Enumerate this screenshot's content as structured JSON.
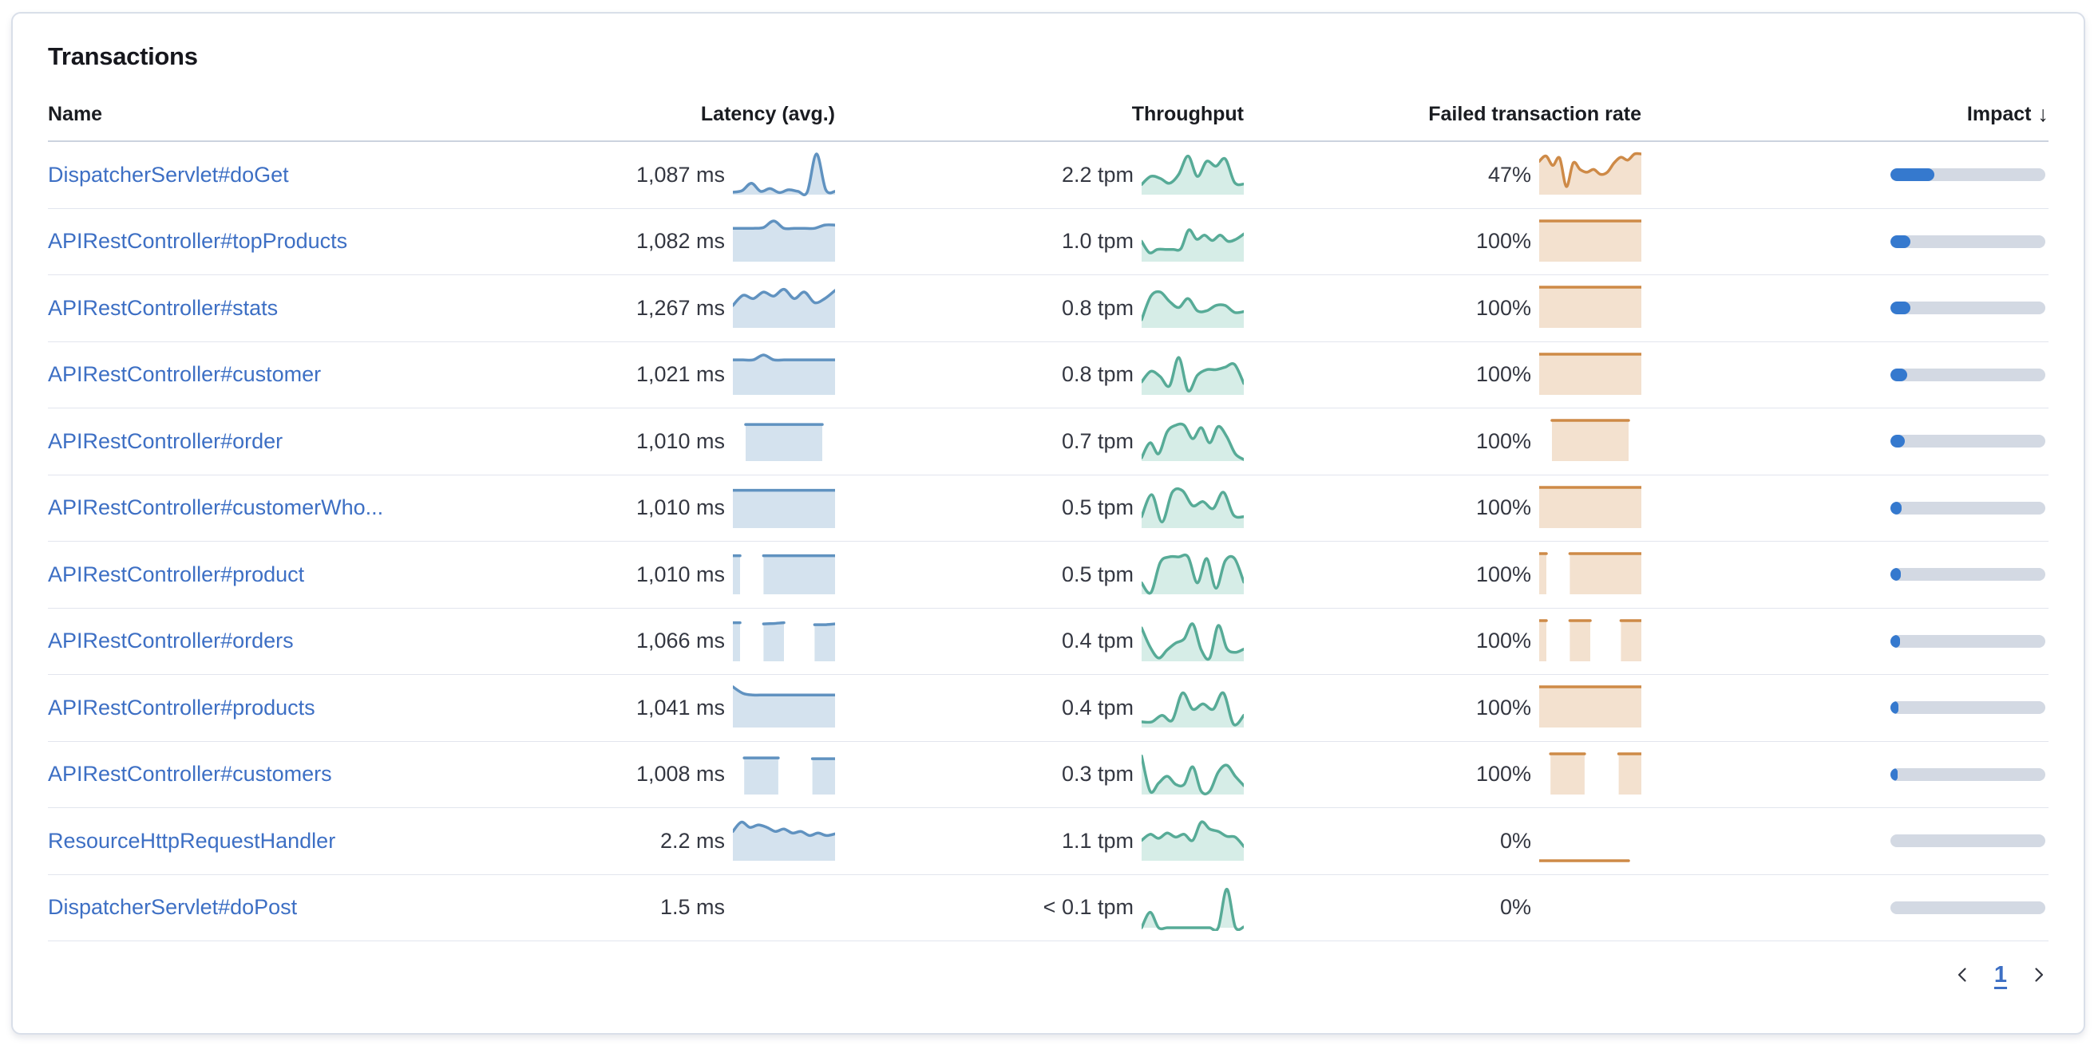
{
  "panel": {
    "title": "Transactions"
  },
  "table": {
    "columns": {
      "name": "Name",
      "latency": "Latency (avg.)",
      "throughput": "Throughput",
      "failed": "Failed transaction rate",
      "impact": "Impact"
    },
    "sort": {
      "column": "impact",
      "direction": "desc",
      "icon": "↓"
    },
    "rows": [
      {
        "name": "DispatcherServlet#doGet",
        "latency": "1,087 ms",
        "latency_spark": [
          0.06,
          0.1,
          0.28,
          0.08,
          0.15,
          0.05,
          0.12,
          0.08,
          0.06,
          1.0,
          0.12,
          0.08
        ],
        "throughput": "2.2 tpm",
        "throughput_spark": [
          0.25,
          0.45,
          0.4,
          0.28,
          0.5,
          0.95,
          0.45,
          0.82,
          0.7,
          0.88,
          0.3,
          0.26
        ],
        "failed": "47%",
        "failed_spark": [
          0.82,
          0.95,
          0.72,
          0.9,
          0.2,
          0.78,
          0.62,
          0.55,
          0.62,
          0.5,
          0.55,
          0.78,
          0.92,
          0.85,
          1.0,
          1.0
        ],
        "impact": 0.285
      },
      {
        "name": "APIRestController#topProducts",
        "latency": "1,082 ms",
        "latency_spark": [
          0.82,
          0.82,
          0.82,
          0.84,
          1.0,
          0.82,
          0.82,
          0.82,
          0.82,
          0.9,
          0.9
        ],
        "throughput": "1.0 tpm",
        "throughput_spark": [
          0.5,
          0.22,
          0.3,
          0.3,
          0.3,
          0.32,
          0.78,
          0.55,
          0.65,
          0.52,
          0.65,
          0.5,
          0.55,
          0.68
        ],
        "failed": "100%",
        "failed_spark": [
          1,
          1,
          1,
          1,
          1,
          1,
          1,
          1
        ],
        "impact": 0.13
      },
      {
        "name": "APIRestController#stats",
        "latency": "1,267 ms",
        "latency_spark": [
          0.55,
          0.8,
          0.72,
          0.88,
          0.78,
          0.95,
          0.72,
          0.88,
          0.62,
          0.72,
          0.92
        ],
        "throughput": "0.8 tpm",
        "throughput_spark": [
          0.2,
          0.78,
          0.88,
          0.65,
          0.5,
          0.72,
          0.42,
          0.42,
          0.55,
          0.55,
          0.38,
          0.4
        ],
        "failed": "100%",
        "failed_spark": [
          1,
          1,
          1,
          1,
          1,
          1,
          1,
          1
        ],
        "impact": 0.13
      },
      {
        "name": "APIRestController#customer",
        "latency": "1,021 ms",
        "latency_spark": [
          0.86,
          0.86,
          0.86,
          0.98,
          0.86,
          0.86,
          0.86,
          0.86,
          0.86,
          0.86,
          0.86
        ],
        "throughput": "0.8 tpm",
        "throughput_spark": [
          0.32,
          0.58,
          0.45,
          0.22,
          0.92,
          0.1,
          0.48,
          0.62,
          0.62,
          0.68,
          0.75,
          0.28
        ],
        "failed": "100%",
        "failed_spark": [
          1,
          1,
          1,
          1,
          1,
          1,
          1,
          1
        ],
        "impact": 0.11
      },
      {
        "name": "APIRestController#order",
        "latency": "1,010 ms",
        "latency_spark": [
          null,
          0.9,
          0.9,
          0.9,
          0.9,
          0.9,
          0.9,
          0.9,
          null
        ],
        "throughput": "0.7 tpm",
        "throughput_spark": [
          0.08,
          0.45,
          0.18,
          0.72,
          0.88,
          0.88,
          0.55,
          0.82,
          0.45,
          0.85,
          0.6,
          0.18,
          0.04
        ],
        "failed": "100%",
        "failed_spark": [
          null,
          1,
          1,
          1,
          1,
          1,
          1,
          1,
          null
        ],
        "impact": 0.095
      },
      {
        "name": "APIRestController#customerWho...",
        "latency": "1,010 ms",
        "latency_spark": [
          0.93,
          0.93,
          0.93,
          0.93,
          0.93,
          0.93,
          0.93,
          0.93
        ],
        "throughput": "0.5 tpm",
        "throughput_spark": [
          0.28,
          0.82,
          0.15,
          0.88,
          0.92,
          0.55,
          0.65,
          0.48,
          0.88,
          0.32,
          0.28
        ],
        "failed": "100%",
        "failed_spark": [
          1,
          1,
          1,
          1,
          1,
          1,
          1,
          1
        ],
        "impact": 0.07
      },
      {
        "name": "APIRestController#product",
        "latency": "1,010 ms",
        "latency_spark": [
          0.95,
          null,
          null,
          0.95,
          0.95,
          0.95,
          0.95,
          0.95,
          0.95,
          0.95,
          0.95
        ],
        "throughput": "0.5 tpm",
        "throughput_spark": [
          0.28,
          0.04,
          0.78,
          0.92,
          0.92,
          0.92,
          0.28,
          0.88,
          0.15,
          0.82,
          0.88,
          0.3
        ],
        "failed": "100%",
        "failed_spark": [
          1,
          null,
          null,
          1,
          1,
          1,
          1,
          1,
          1,
          1,
          1
        ],
        "impact": 0.065
      },
      {
        "name": "APIRestController#orders",
        "latency": "1,066 ms",
        "latency_spark": [
          0.95,
          null,
          null,
          0.92,
          0.93,
          0.95,
          null,
          null,
          0.9,
          0.9,
          0.92
        ],
        "throughput": "0.4 tpm",
        "throughput_spark": [
          0.82,
          0.35,
          0.08,
          0.28,
          0.45,
          0.55,
          0.92,
          0.28,
          0.08,
          0.88,
          0.32,
          0.22,
          0.3
        ],
        "failed": "100%",
        "failed_spark": [
          1,
          null,
          null,
          1,
          1,
          1,
          null,
          null,
          1,
          1,
          1
        ],
        "impact": 0.06
      },
      {
        "name": "APIRestController#products",
        "latency": "1,041 ms",
        "latency_spark": [
          1.0,
          0.84,
          0.8,
          0.8,
          0.8,
          0.8,
          0.8,
          0.8,
          0.8,
          0.8,
          0.8
        ],
        "throughput": "0.4 tpm",
        "throughput_spark": [
          0.14,
          0.14,
          0.3,
          0.18,
          0.85,
          0.45,
          0.58,
          0.45,
          0.85,
          0.08,
          0.3
        ],
        "failed": "100%",
        "failed_spark": [
          1,
          1,
          1,
          1,
          1,
          1,
          1,
          1
        ],
        "impact": 0.05
      },
      {
        "name": "APIRestController#customers",
        "latency": "1,008 ms",
        "latency_spark": [
          null,
          0.9,
          0.9,
          0.9,
          0.9,
          null,
          null,
          0.88,
          0.88,
          0.88
        ],
        "throughput": "0.3 tpm",
        "throughput_spark": [
          0.95,
          0.08,
          0.28,
          0.45,
          0.25,
          0.25,
          0.68,
          0.08,
          0.08,
          0.55,
          0.72,
          0.45,
          0.22
        ],
        "failed": "100%",
        "failed_spark": [
          null,
          1,
          1,
          1,
          1,
          null,
          null,
          1,
          1,
          1
        ],
        "impact": 0.045
      },
      {
        "name": "ResourceHttpRequestHandler",
        "latency": "2.2 ms",
        "latency_spark": [
          0.72,
          0.95,
          0.82,
          0.88,
          0.82,
          0.72,
          0.78,
          0.68,
          0.72,
          0.62,
          0.68,
          0.62,
          0.66
        ],
        "throughput": "1.1 tpm",
        "throughput_spark": [
          0.5,
          0.65,
          0.55,
          0.68,
          0.58,
          0.65,
          0.5,
          0.95,
          0.78,
          0.72,
          0.6,
          0.58,
          0.35
        ],
        "failed": "0%",
        "failed_spark": [
          0,
          0,
          0,
          0,
          0,
          0,
          0,
          0,
          null
        ],
        "impact": 0
      },
      {
        "name": "DispatcherServlet#doPost",
        "latency": "1.5 ms",
        "latency_spark": [],
        "throughput": "< 0.1 tpm",
        "throughput_spark": [
          0.0,
          0.38,
          0.0,
          0.0,
          0.0,
          0.0,
          0.0,
          0.0,
          0.0,
          0.0,
          0.95,
          0.02,
          0.02
        ],
        "failed": "0%",
        "failed_spark": [],
        "impact": 0
      }
    ]
  },
  "pagination": {
    "page": "1"
  },
  "colors": {
    "latency_line": "#6092c0",
    "latency_fill": "rgba(96,146,192,0.27)",
    "throughput_line": "#57ab97",
    "throughput_fill": "rgba(84,179,153,0.24)",
    "failed_line": "#ce8a47",
    "failed_fill": "rgba(212,148,83,0.28)",
    "impact_fill": "#3579ce",
    "impact_track": "#d3d9e3",
    "link": "#3d6fc4"
  }
}
